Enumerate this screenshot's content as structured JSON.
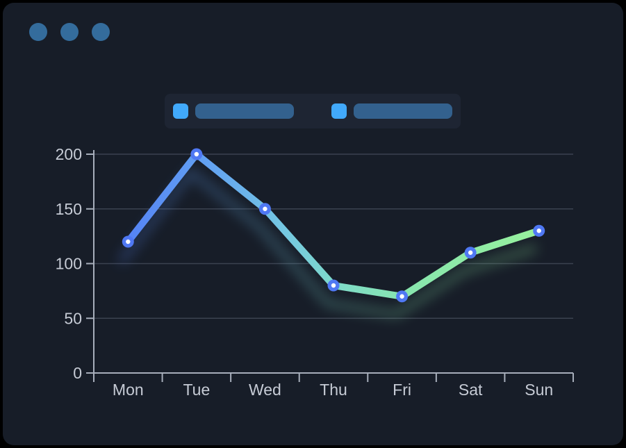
{
  "window": {
    "controls": {
      "count": 3,
      "color": "#346c9c"
    }
  },
  "legend": {
    "background": "#1e2533",
    "items": [
      {
        "swatch_color": "#41a9fb",
        "bar_color": "#33618e"
      },
      {
        "swatch_color": "#41a9fb",
        "bar_color": "#33618e"
      }
    ]
  },
  "chart_data": {
    "type": "line",
    "categories": [
      "Mon",
      "Tue",
      "Wed",
      "Thu",
      "Fri",
      "Sat",
      "Sun"
    ],
    "values": [
      120,
      200,
      150,
      80,
      70,
      110,
      130
    ],
    "title": "",
    "xlabel": "",
    "ylabel": "",
    "ylim": [
      0,
      200
    ],
    "yticks": [
      0,
      50,
      100,
      150,
      200
    ],
    "grid": true,
    "legend_position": "top",
    "style": {
      "page_background": "#000000",
      "panel_background": "#171d28",
      "grid_color": "#3b4250",
      "axis_color": "#a7aebb",
      "label_color": "#c6cbd5",
      "label_font_size": 23,
      "line_width": 10,
      "line_gradient": [
        {
          "offset": 0.0,
          "color": "#5583f4"
        },
        {
          "offset": 0.2,
          "color": "#63a3f2"
        },
        {
          "offset": 0.38,
          "color": "#75c8e2"
        },
        {
          "offset": 0.52,
          "color": "#7fdcc7"
        },
        {
          "offset": 0.68,
          "color": "#88e6ae"
        },
        {
          "offset": 1.0,
          "color": "#97f19d"
        }
      ],
      "marker_color": "#4f78f3",
      "marker_center_color": "#ffffff"
    }
  }
}
